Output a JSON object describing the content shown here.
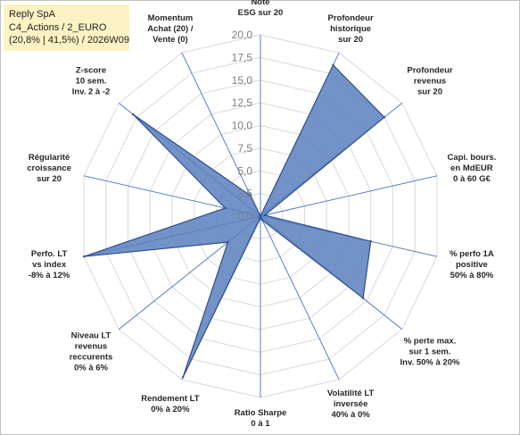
{
  "title": {
    "line1": "Reply SpA",
    "line2": "C4_Actions / 2_EURO",
    "line3": "(20,8% | 41,5%) / 2026W09"
  },
  "chart_data": {
    "type": "radar",
    "rlim": [
      0,
      20
    ],
    "ticks": [
      "0,0",
      "2,5",
      "5,0",
      "7,5",
      "10,0",
      "12,5",
      "15,0",
      "17,5",
      "20,0"
    ],
    "axes": [
      [
        "Note",
        "ESG sur 20"
      ],
      [
        "Profondeur",
        "historique",
        "sur 20"
      ],
      [
        "Profondeur",
        "revenus",
        "sur 20"
      ],
      [
        "Capi. bours.",
        "en MdEUR",
        "0 à 60 G€"
      ],
      [
        "% perfo 1A",
        "positive",
        "50% à 80%"
      ],
      [
        "% perte max.",
        "sur 1 sem.",
        "Inv. 50% à 20%"
      ],
      [
        "Volatilité LT",
        "inversée",
        "40% à 0%"
      ],
      [
        "Ratio Sharpe",
        "0 à 1"
      ],
      [
        "Rendement LT",
        "0% à 20%"
      ],
      [
        "Niveau LT",
        "revenus",
        "reccurents",
        "0% à 6%"
      ],
      [
        "Perfo. LT",
        "vs index",
        "-8% à 12%"
      ],
      [
        "Régularité",
        "croissance",
        "sur 20"
      ],
      [
        "Z-score",
        "10 sem.",
        "Inv. 2 à -2"
      ],
      [
        "Momentum",
        "Achat (20) /",
        "Vente (0)"
      ]
    ],
    "values": [
      0,
      18.5,
      17.5,
      0.5,
      12.5,
      14.5,
      0.5,
      0.2,
      19.7,
      4.6,
      20,
      4,
      18,
      2.5
    ],
    "colors": {
      "fill": "#5b7fbd",
      "stroke": "#2f4f8f",
      "axis": "#4472c4",
      "grid": "#d9d9d9"
    }
  }
}
